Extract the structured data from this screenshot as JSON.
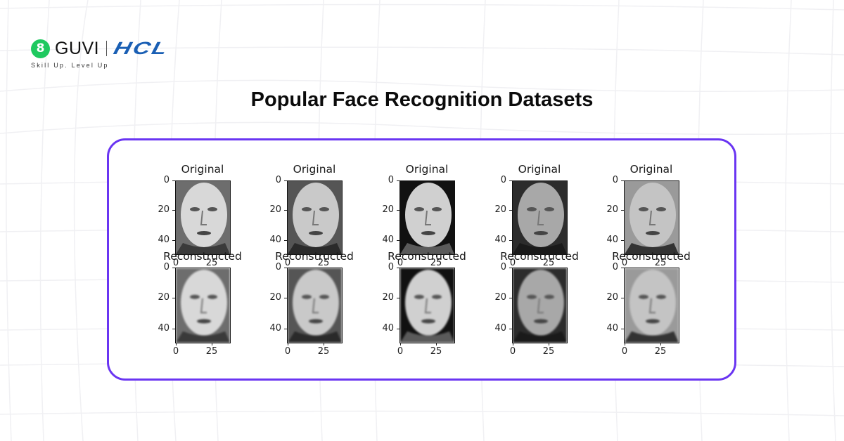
{
  "brand": {
    "guvi_label": "GUVI",
    "guvi_badge_glyph": "8",
    "partner_label": "HCL",
    "tagline": "Skill Up. Level Up"
  },
  "title": "Popular Face Recognition Datasets",
  "colors": {
    "panel_border": "#6a35f2",
    "guvi_green": "#1ec95f",
    "hcl_blue": "#1a5fb4",
    "title_text": "#0b0b0b"
  },
  "figure": {
    "rows": [
      {
        "label": "Original"
      },
      {
        "label": "Reconstructed"
      }
    ],
    "y_ticks": [
      "0",
      "20",
      "40"
    ],
    "x_ticks": [
      "0",
      "25"
    ],
    "columns": 5,
    "faces": [
      {
        "id": "face-1",
        "original": "Original",
        "reconstructed": "Reconstructed"
      },
      {
        "id": "face-2",
        "original": "Original",
        "reconstructed": "Reconstructed"
      },
      {
        "id": "face-3",
        "original": "Original",
        "reconstructed": "Reconstructed"
      },
      {
        "id": "face-4",
        "original": "Original",
        "reconstructed": "Reconstructed"
      },
      {
        "id": "face-5",
        "original": "Original",
        "reconstructed": "Reconstructed"
      }
    ]
  }
}
